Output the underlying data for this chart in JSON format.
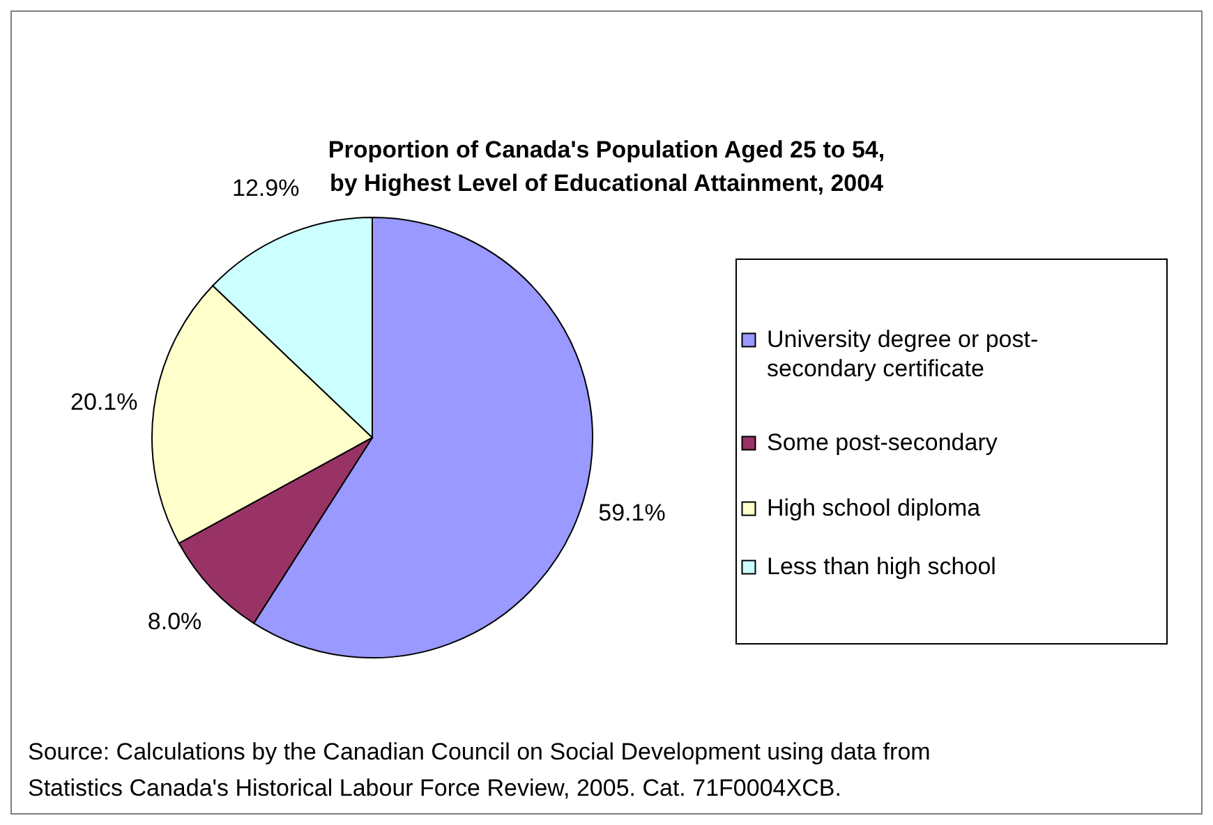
{
  "chart_data": {
    "type": "pie",
    "title": "Proportion of Canada's Population Aged 25 to 54, by Highest Level of Educational Attainment, 2004",
    "categories": [
      "University degree or post-secondary certificate",
      "Some post-secondary",
      "High school diploma",
      "Less than high school"
    ],
    "values": [
      59.1,
      8.0,
      20.1,
      12.9
    ],
    "colors": [
      "#9999ff",
      "#993366",
      "#ffffcc",
      "#ccffff"
    ],
    "value_labels": [
      "59.1%",
      "8.0%",
      "20.1%",
      "12.9%"
    ],
    "legend": "right",
    "annotations": [
      "Source: Calculations by the Canadian Council on Social Development using data from Statistics Canada's Historical Labour Force Review, 2005. Cat. 71F0004XCB."
    ]
  }
}
